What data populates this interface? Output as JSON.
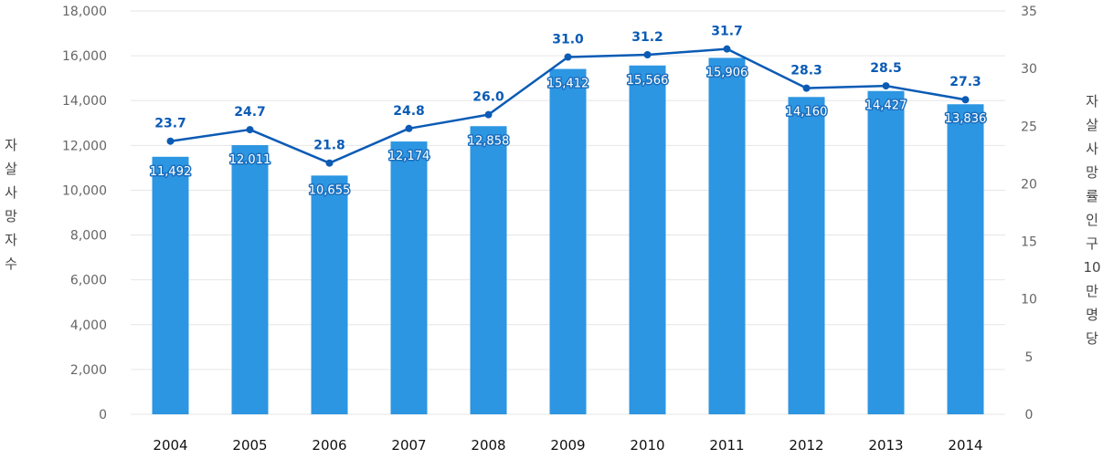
{
  "chart_data": {
    "type": "bar",
    "categories": [
      "2004",
      "2005",
      "2006",
      "2007",
      "2008",
      "2009",
      "2010",
      "2011",
      "2012",
      "2013",
      "2014"
    ],
    "bar_series": {
      "values": [
        11492,
        12011,
        10655,
        12174,
        12858,
        15412,
        15566,
        15906,
        14160,
        14427,
        13836
      ],
      "labels": [
        "11,492",
        "12.011",
        "10,655",
        "12,174",
        "12,858",
        "15,412",
        "15,566",
        "15,906",
        "14,160",
        "14,427",
        "13,836"
      ],
      "axis": "left",
      "color": "#2c96e2"
    },
    "line_series": {
      "values": [
        23.7,
        24.7,
        21.8,
        24.8,
        26.0,
        31.0,
        31.2,
        31.7,
        28.3,
        28.5,
        27.3
      ],
      "labels": [
        "23.7",
        "24.7",
        "21.8",
        "24.8",
        "26.0",
        "31.0",
        "31.2",
        "31.7",
        "28.3",
        "28.5",
        "27.3"
      ],
      "axis": "right",
      "color": "#0b5bb5"
    },
    "ylabel": [
      "자",
      "살",
      "사",
      "망",
      "자",
      "수"
    ],
    "y2label": [
      "자",
      "살",
      "사",
      "망",
      "률",
      "인",
      "구",
      "10",
      "만",
      "명",
      "당"
    ],
    "ylim": [
      0,
      18000
    ],
    "y2lim": [
      0,
      35
    ],
    "yticks": [
      "0",
      "2,000",
      "4,000",
      "6,000",
      "8,000",
      "10,000",
      "12,000",
      "14,000",
      "16,000",
      "18,000"
    ],
    "y2ticks": [
      "0",
      "5",
      "10",
      "15",
      "20",
      "25",
      "30",
      "35"
    ],
    "grid": true,
    "colors": {
      "grid": "#e6e6e6",
      "tick_text": "#666666",
      "category_text": "#111111"
    }
  }
}
